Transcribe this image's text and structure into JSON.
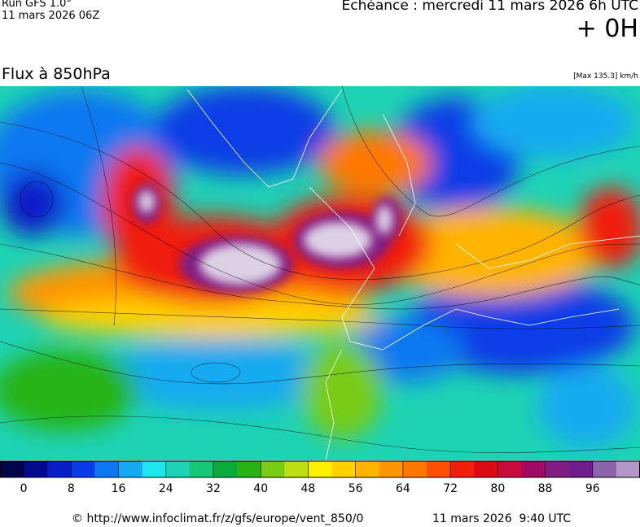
{
  "header": {
    "run": "Run GFS 1.0°",
    "run_date": "11 mars 2026 06Z",
    "valid_time": "Echéance : mercredi 11 mars 2026 6h UTC",
    "lead": "+ 0H"
  },
  "map": {
    "title": "Flux à 850hPa",
    "max_note": "[Max 135.3] km/h"
  },
  "colorbar": {
    "lim": [
      -4,
      104
    ],
    "ticks": [
      0,
      8,
      16,
      24,
      32,
      40,
      48,
      56,
      64,
      72,
      80,
      88,
      96
    ],
    "colors": [
      "#04044a",
      "#050a8c",
      "#0a1ec8",
      "#0a3ce6",
      "#0a78f0",
      "#14aaf0",
      "#1ee6f0",
      "#1ed2b4",
      "#14c878",
      "#0aaa3c",
      "#28b414",
      "#78cc14",
      "#bede14",
      "#fff000",
      "#ffd200",
      "#ffb400",
      "#ff9600",
      "#ff7800",
      "#ff5000",
      "#f01e0a",
      "#dc0a14",
      "#c80a3c",
      "#a00a64",
      "#821e82",
      "#6e1e8c",
      "#8c64aa",
      "#b496c8"
    ]
  },
  "footer": {
    "source": "© http://www.infoclimat.fr/z/gfs/europe/vent_850/0",
    "generated": "11 mars 2026  9:40 UTC"
  }
}
